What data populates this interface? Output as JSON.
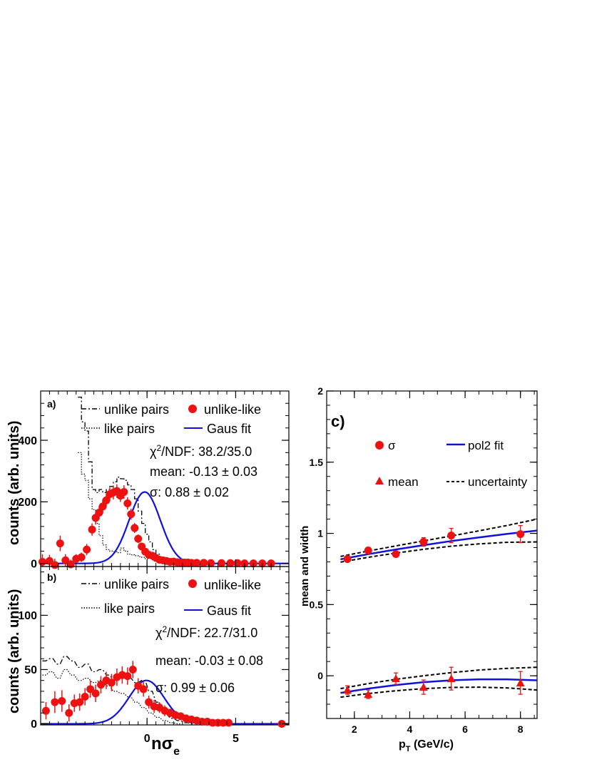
{
  "panel_a": {
    "label": "a)",
    "ylabel": "counts (arb. units)",
    "legend": {
      "unlike": "unlike pairs",
      "like": "like pairs",
      "data": "unlike-like",
      "fit": "Gaus fit"
    },
    "stats": {
      "chi2_prefix": "χ",
      "chi2_sup": "2",
      "chi2_rest": "/NDF: 38.2/35.0",
      "mean": "mean: -0.13 ±  0.03",
      "sigma": "σ:  0.88 ±  0.02"
    }
  },
  "panel_b": {
    "label": "b)",
    "ylabel": "counts (arb. units)",
    "xlabel_main": "nσ",
    "xlabel_sub": "e",
    "legend": {
      "unlike": "unlike pairs",
      "like": "like pairs",
      "data": "unlike-like",
      "fit": "Gaus fit"
    },
    "stats": {
      "chi2_prefix": "χ",
      "chi2_sup": "2",
      "chi2_rest": "/NDF: 22.7/31.0",
      "mean": "mean: -0.03 ±  0.08",
      "sigma": "σ:  0.99 ±  0.06"
    }
  },
  "panel_c": {
    "label": "c)",
    "ylabel": "mean and width",
    "xlabel_main": "p",
    "xlabel_sub": "T",
    "xlabel_rest": " (GeV/c)",
    "legend": {
      "sigma": "σ",
      "mean": "mean",
      "fit": "pol2 fit",
      "unc": "uncertainty"
    }
  },
  "colors": {
    "data": "#ee1111",
    "fit": "#1111dd",
    "axis": "#000000"
  },
  "chart_data": [
    {
      "type": "scatter",
      "title": "a)",
      "xlabel": "nσe",
      "ylabel": "counts (arb. units)",
      "xlim": [
        -6,
        8
      ],
      "ylim": [
        -10,
        560
      ],
      "xticks": [
        0,
        5
      ],
      "yticks": [
        0,
        200,
        400
      ],
      "series": [
        {
          "name": "unlike-like",
          "x": [
            -5.9,
            -5.5,
            -5.2,
            -4.9,
            -4.6,
            -4.3,
            -4.0,
            -3.7,
            -3.4,
            -3.1,
            -2.9,
            -2.7,
            -2.5,
            -2.3,
            -2.1,
            -1.9,
            -1.7,
            -1.5,
            -1.3,
            -1.1,
            -0.9,
            -0.7,
            -0.5,
            -0.3,
            -0.1,
            0.1,
            0.3,
            0.5,
            0.7,
            0.9,
            1.1,
            1.3,
            1.5,
            1.7,
            1.9,
            2.1,
            2.3,
            2.5,
            2.8,
            3.2,
            3.6,
            4.2,
            4.7,
            5.1,
            5.5,
            6.0,
            6.5,
            7.0
          ],
          "y": [
            5,
            8,
            -5,
            65,
            10,
            -3,
            15,
            20,
            45,
            110,
            148,
            165,
            185,
            205,
            225,
            230,
            235,
            220,
            232,
            195,
            160,
            115,
            80,
            55,
            38,
            28,
            25,
            18,
            12,
            10,
            8,
            5,
            6,
            4,
            3,
            3,
            3,
            2,
            2,
            2,
            1,
            1,
            1,
            1,
            0,
            0,
            0,
            0
          ],
          "yerr": [
            25,
            20,
            20,
            25,
            20,
            15,
            15,
            15,
            18,
            20,
            22,
            22,
            22,
            22,
            22,
            22,
            22,
            20,
            22,
            20,
            18,
            16,
            14,
            12,
            10,
            8,
            8,
            7,
            6,
            5,
            5,
            4,
            4,
            3,
            3,
            3,
            3,
            3,
            2,
            2,
            2,
            2,
            2,
            2,
            2,
            2,
            2,
            2
          ]
        },
        {
          "name": "Gaus fit",
          "mean": -0.13,
          "sigma": 0.88,
          "amplitude": 232
        },
        {
          "name": "unlike pairs",
          "x": [
            -3.8,
            -3.6,
            -3.4,
            -3.2,
            -3.0,
            -2.8,
            -2.6,
            -2.4,
            -2.2,
            -2.0,
            -1.8,
            -1.6,
            -1.4,
            -1.2,
            -1.0,
            -0.8,
            -0.6,
            -0.4,
            -0.2,
            0.0,
            0.2,
            0.4,
            0.6,
            0.8,
            1.0,
            1.2,
            1.4,
            1.6,
            1.8,
            2.0,
            2.4,
            2.8,
            3.2
          ],
          "y": [
            540,
            460,
            430,
            330,
            240,
            230,
            240,
            230,
            240,
            250,
            265,
            280,
            275,
            270,
            255,
            240,
            210,
            170,
            130,
            95,
            70,
            45,
            30,
            20,
            12,
            8,
            5,
            3,
            2,
            1,
            1,
            1,
            0
          ]
        },
        {
          "name": "like pairs",
          "x": [
            -3.8,
            -3.6,
            -3.4,
            -3.2,
            -3.0,
            -2.8,
            -2.6,
            -2.4,
            -2.2,
            -2.0,
            -1.8,
            -1.6,
            -1.4,
            -1.2,
            -1.0,
            -0.8,
            -0.6,
            -0.4,
            -0.2,
            0.0,
            0.2,
            0.4,
            0.6,
            0.8,
            1.0,
            1.2,
            1.4,
            1.6,
            2.0
          ],
          "y": [
            360,
            290,
            270,
            210,
            175,
            130,
            90,
            60,
            45,
            40,
            38,
            35,
            50,
            40,
            30,
            28,
            25,
            22,
            20,
            15,
            18,
            12,
            10,
            8,
            5,
            4,
            3,
            2,
            1
          ]
        }
      ]
    },
    {
      "type": "scatter",
      "title": "b)",
      "xlabel": "nσe",
      "ylabel": "counts (arb. units)",
      "xlim": [
        -6,
        8
      ],
      "ylim": [
        -1,
        145
      ],
      "xticks": [
        0,
        5
      ],
      "yticks": [
        0,
        50,
        100
      ],
      "series": [
        {
          "name": "unlike-like",
          "x": [
            -5.7,
            -5.2,
            -4.8,
            -4.4,
            -4.1,
            -3.8,
            -3.5,
            -3.2,
            -2.9,
            -2.6,
            -2.3,
            -2.0,
            -1.7,
            -1.4,
            -1.1,
            -0.8,
            -0.5,
            -0.2,
            0.1,
            0.4,
            0.7,
            1.0,
            1.3,
            1.6,
            1.9,
            2.2,
            2.5,
            2.8,
            3.1,
            3.4,
            3.7,
            4.0,
            4.3,
            4.6,
            7.6
          ],
          "y": [
            12,
            20,
            21,
            10,
            19,
            20,
            25,
            32,
            28,
            36,
            40,
            38,
            43,
            45,
            44,
            50,
            35,
            32,
            20,
            16,
            15,
            12,
            10,
            8,
            7,
            5,
            4,
            3,
            2,
            2,
            1,
            1,
            1,
            1,
            0
          ],
          "yerr": [
            8,
            10,
            10,
            8,
            8,
            8,
            8,
            8,
            8,
            8,
            8,
            8,
            8,
            8,
            8,
            8,
            7,
            7,
            6,
            6,
            5,
            5,
            4,
            4,
            3,
            3,
            3,
            2,
            2,
            2,
            2,
            2,
            2,
            2,
            2
          ]
        },
        {
          "name": "Gaus fit",
          "mean": -0.03,
          "sigma": 0.99,
          "amplitude": 40
        },
        {
          "name": "unlike pairs",
          "x": [
            -5.8,
            -5.4,
            -5.0,
            -4.6,
            -4.2,
            -3.8,
            -3.4,
            -3.0,
            -2.6,
            -2.2,
            -1.8,
            -1.4,
            -1.0,
            -0.6,
            -0.2,
            0.2,
            0.6,
            1.0,
            1.4,
            1.8,
            2.2,
            2.6
          ],
          "y": [
            58,
            60,
            55,
            62,
            58,
            52,
            55,
            48,
            50,
            45,
            40,
            45,
            42,
            38,
            40,
            30,
            20,
            10,
            5,
            3,
            1,
            0
          ]
        },
        {
          "name": "like pairs",
          "x": [
            -5.8,
            -5.4,
            -5.0,
            -4.6,
            -4.2,
            -3.8,
            -3.4,
            -3.0,
            -2.6,
            -2.2,
            -1.8,
            -1.4,
            -1.0,
            -0.6,
            -0.2,
            0.2,
            0.6,
            1.0,
            1.4,
            1.8
          ],
          "y": [
            45,
            48,
            42,
            50,
            45,
            40,
            42,
            38,
            40,
            35,
            30,
            28,
            25,
            20,
            15,
            10,
            6,
            3,
            1,
            0
          ]
        }
      ]
    },
    {
      "type": "scatter",
      "title": "c)",
      "xlabel": "pT (GeV/c)",
      "ylabel": "mean and width",
      "xlim": [
        1.0,
        8.6
      ],
      "ylim": [
        -0.3,
        2.0
      ],
      "xticks": [
        2,
        4,
        6,
        8
      ],
      "yticks": [
        0,
        0.5,
        1,
        1.5,
        2
      ],
      "series": [
        {
          "name": "σ",
          "x": [
            1.75,
            2.5,
            3.5,
            4.5,
            5.5,
            8.0
          ],
          "y": [
            0.82,
            0.88,
            0.855,
            0.94,
            0.985,
            0.995
          ],
          "yerr": [
            0.02,
            0.02,
            0.02,
            0.03,
            0.05,
            0.06
          ]
        },
        {
          "name": "mean",
          "x": [
            1.75,
            2.5,
            3.5,
            4.5,
            5.5,
            8.0
          ],
          "y": [
            -0.1,
            -0.13,
            -0.02,
            -0.08,
            -0.02,
            -0.05
          ],
          "yerr": [
            0.03,
            0.03,
            0.04,
            0.05,
            0.08,
            0.08
          ]
        },
        {
          "name": "pol2 fit (σ)",
          "x": [
            1.5,
            2.5,
            3.5,
            4.5,
            5.5,
            6.5,
            7.5,
            8.6
          ],
          "y": [
            0.818,
            0.854,
            0.887,
            0.917,
            0.946,
            0.972,
            0.996,
            1.02
          ]
        },
        {
          "name": "uncertainty (σ upper)",
          "x": [
            1.5,
            2.5,
            3.5,
            4.5,
            5.5,
            6.5,
            7.5,
            8.6
          ],
          "y": [
            0.838,
            0.876,
            0.912,
            0.947,
            0.982,
            1.018,
            1.055,
            1.1
          ]
        },
        {
          "name": "uncertainty (σ lower)",
          "x": [
            1.5,
            2.5,
            3.5,
            4.5,
            5.5,
            6.5,
            7.5,
            8.6
          ],
          "y": [
            0.798,
            0.832,
            0.862,
            0.888,
            0.91,
            0.926,
            0.937,
            0.94
          ]
        },
        {
          "name": "pol2 fit (mean)",
          "x": [
            1.5,
            2.5,
            3.5,
            4.5,
            5.5,
            6.5,
            7.5,
            8.6
          ],
          "y": [
            -0.12,
            -0.09,
            -0.065,
            -0.045,
            -0.032,
            -0.025,
            -0.025,
            -0.032
          ]
        },
        {
          "name": "uncertainty (mean upper)",
          "x": [
            1.5,
            2.5,
            3.5,
            4.5,
            5.5,
            6.5,
            7.5,
            8.6
          ],
          "y": [
            -0.09,
            -0.055,
            -0.025,
            0.0,
            0.022,
            0.04,
            0.052,
            0.06
          ]
        },
        {
          "name": "uncertainty (mean lower)",
          "x": [
            1.5,
            2.5,
            3.5,
            4.5,
            5.5,
            6.5,
            7.5,
            8.6
          ],
          "y": [
            -0.15,
            -0.125,
            -0.105,
            -0.09,
            -0.082,
            -0.08,
            -0.085,
            -0.1
          ]
        }
      ]
    }
  ]
}
